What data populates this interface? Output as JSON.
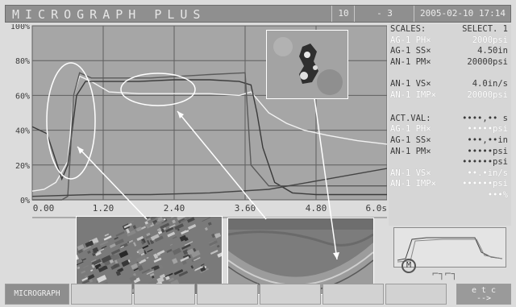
{
  "header": {
    "title": "MICROGRAPH PLUS",
    "field1": "10",
    "field2": "- 3",
    "datetime": "2005-02-10 17:14"
  },
  "panel": {
    "scales_label": "SCALES:",
    "scales_value": "SELECT. 1",
    "scale_rows": [
      {
        "label": "AG-1 PH×",
        "value": "2000psi",
        "tone": "dim"
      },
      {
        "label": "AG-1 SS×",
        "value": "4.50in",
        "tone": "dark"
      },
      {
        "label": "AN-1 PM×",
        "value": "20000psi",
        "tone": "dark"
      },
      {
        "label": "      ",
        "value": "",
        "tone": "dim"
      },
      {
        "label": "AN-1 VS×",
        "value": "4.0in/s",
        "tone": "dark"
      },
      {
        "label": "AN-1 IMP×",
        "value": "20000psi",
        "tone": "dim"
      },
      {
        "label": "",
        "value": "",
        "tone": "dim"
      }
    ],
    "act_label": "ACT.VAL:",
    "act_value": "••••,•• s",
    "act_rows": [
      {
        "label": "AG-1 PH×",
        "value": "•••••psi",
        "tone": "dim"
      },
      {
        "label": "AG-1 SS×",
        "value": "•••,••in",
        "tone": "dark"
      },
      {
        "label": "AN-1 PM×",
        "value": "•••••psi",
        "tone": "dark"
      },
      {
        "label": "",
        "value": "••••••psi",
        "tone": "dark"
      },
      {
        "label": "AN-1 VS×",
        "value": "••.•in/s",
        "tone": "dim"
      },
      {
        "label": "AN-1 IMP×",
        "value": "••••••psi",
        "tone": "dim"
      },
      {
        "label": "",
        "value": "•••%",
        "tone": "dim"
      }
    ]
  },
  "softkeys": {
    "micrograph": "MICROGRAPH",
    "etc_top": "e t c",
    "etc_bottom": "-->"
  },
  "icons": {
    "m_icon": "M",
    "wave_icon": "⌐┐⌐┐"
  },
  "chart_data": {
    "type": "line",
    "title": "",
    "xlabel": "",
    "ylabel": "",
    "xlim": [
      0,
      6.0
    ],
    "ylim": [
      0,
      100
    ],
    "x_tick_labels": [
      "0.00",
      "1.20",
      "2.40",
      "3.60",
      "4.80",
      "6.0s"
    ],
    "x_ticks": [
      0,
      1.2,
      2.4,
      3.6,
      4.8,
      6.0
    ],
    "y_tick_labels": [
      "0%",
      "20%",
      "40%",
      "60%",
      "80%",
      "100%"
    ],
    "y_ticks": [
      0,
      20,
      40,
      60,
      80,
      100
    ],
    "grid": true,
    "series": [
      {
        "color": "#f2f2f2",
        "x": [
          0,
          0.2,
          0.4,
          0.6,
          0.7,
          0.8,
          1.0,
          1.3,
          1.8,
          2.4,
          3.0,
          3.5,
          3.7,
          3.8,
          4.0,
          4.3,
          4.6,
          5.0,
          5.5,
          6.0
        ],
        "y": [
          5,
          6,
          10,
          22,
          60,
          71,
          68,
          62,
          61,
          61,
          61,
          60,
          62,
          58,
          50,
          44,
          40,
          37,
          34,
          32
        ]
      },
      {
        "color": "#3a3a3a",
        "x": [
          0,
          0.25,
          0.5,
          0.6,
          0.75,
          0.9,
          1.2,
          1.8,
          2.4,
          3.0,
          3.5,
          3.7,
          3.8,
          3.9,
          4.1,
          4.4,
          4.8,
          5.2,
          6.0
        ],
        "y": [
          42,
          38,
          12,
          20,
          60,
          68,
          68,
          68,
          69,
          69,
          68,
          66,
          50,
          30,
          10,
          4,
          3,
          3,
          3
        ]
      },
      {
        "color": "#5a5a5a",
        "x": [
          0,
          0.5,
          0.6,
          0.65,
          0.7,
          0.8,
          1.0,
          2.0,
          3.0,
          3.6,
          3.7,
          4.0,
          5.0,
          6.0
        ],
        "y": [
          0,
          0,
          2,
          30,
          60,
          73,
          70,
          70,
          72,
          73,
          20,
          8,
          8,
          8
        ]
      },
      {
        "color": "#444444",
        "x": [
          0,
          1.0,
          2.0,
          3.0,
          4.0,
          5.0,
          6.0
        ],
        "y": [
          2,
          3,
          3,
          4,
          6,
          12,
          18
        ]
      }
    ]
  }
}
